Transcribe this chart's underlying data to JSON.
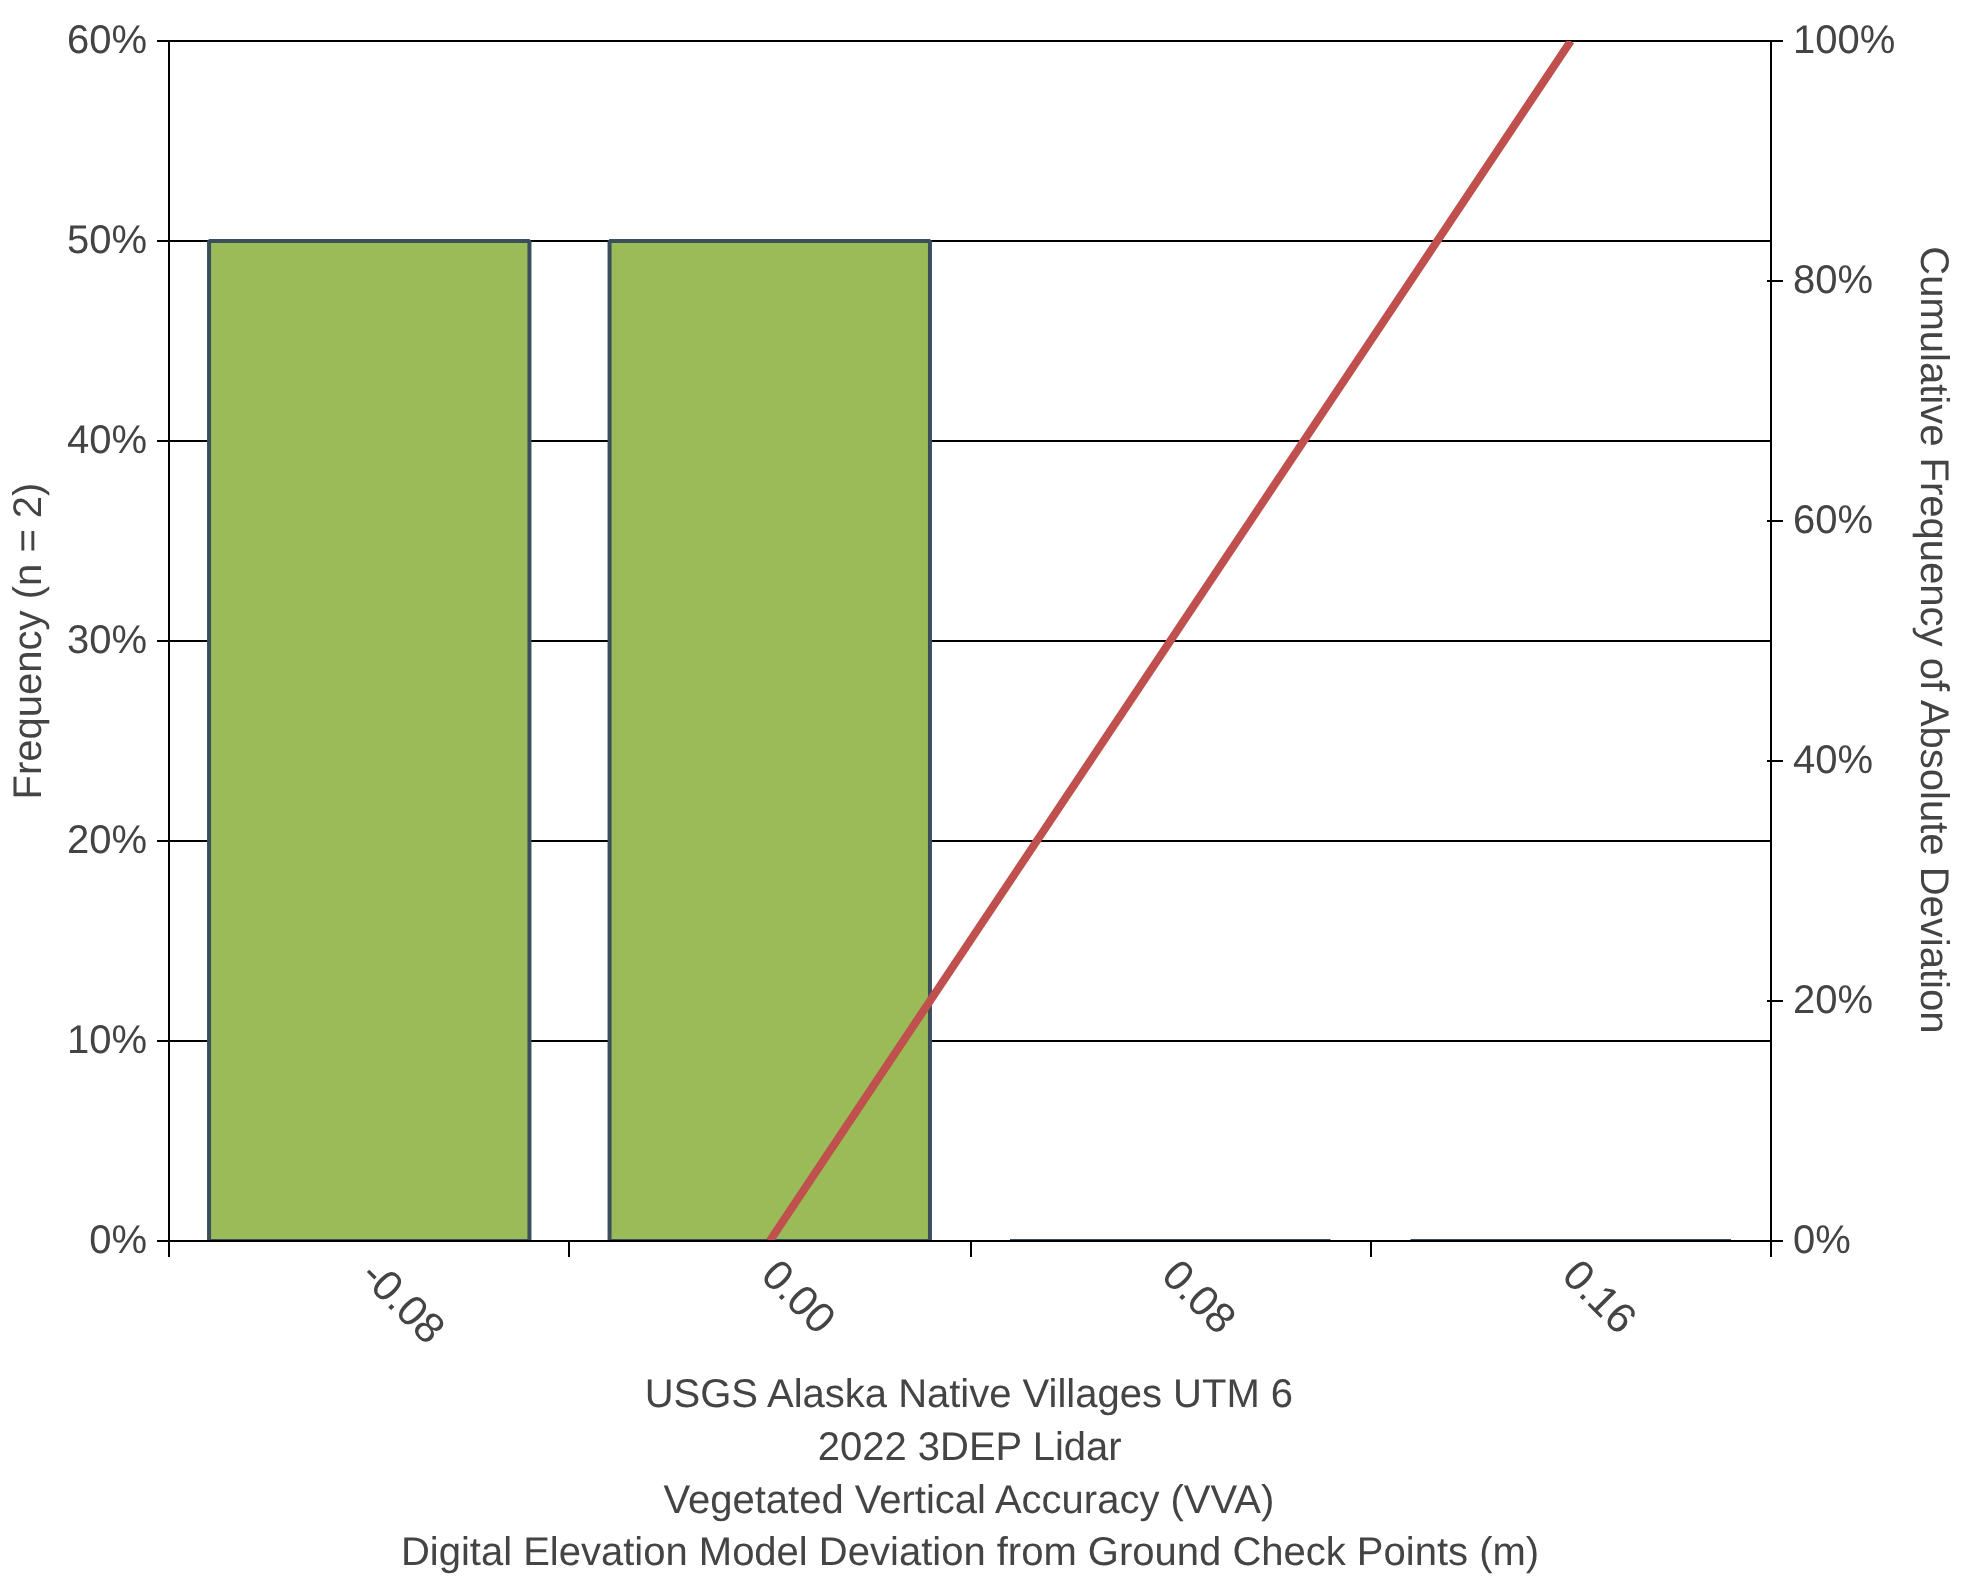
{
  "chart_data": {
    "type": "bar",
    "xlabel": "USGS Alaska Native Villages UTM 6\n2022 3DEP Lidar\nVegetated Vertical Accuracy (VVA)\nDigital Elevation Model Deviation from Ground Check Points (m)",
    "ylabel": "Frequency (n = 2)",
    "y2label": "Cumulative Frequency of Absolute Deviation",
    "categories": [
      "-0.08",
      "0.00",
      "0.08",
      "0.16"
    ],
    "series": [
      {
        "color": "#9bbb59",
        "values": [
          50,
          50,
          0,
          0
        ]
      },
      {
        "type": "line",
        "axis": "y2",
        "color": "#c0504d",
        "values": [
          null,
          0,
          50,
          100
        ]
      }
    ],
    "ylim": [
      0,
      60
    ],
    "yticks": [
      {
        "value": 0,
        "label": "0%"
      },
      {
        "value": 10,
        "label": "10%"
      },
      {
        "value": 20,
        "label": "20%"
      },
      {
        "value": 30,
        "label": "30%"
      },
      {
        "value": 40,
        "label": "40%"
      },
      {
        "value": 50,
        "label": "50%"
      },
      {
        "value": 60,
        "label": "60%"
      }
    ],
    "y2lim": [
      0,
      100
    ],
    "y2ticks": [
      {
        "value": 0,
        "label": "0%"
      },
      {
        "value": 20,
        "label": "20%"
      },
      {
        "value": 40,
        "label": "40%"
      },
      {
        "value": 60,
        "label": "60%"
      },
      {
        "value": 80,
        "label": "80%"
      },
      {
        "value": 100,
        "label": "100%"
      }
    ],
    "grid": "y",
    "line_style": "solid"
  }
}
